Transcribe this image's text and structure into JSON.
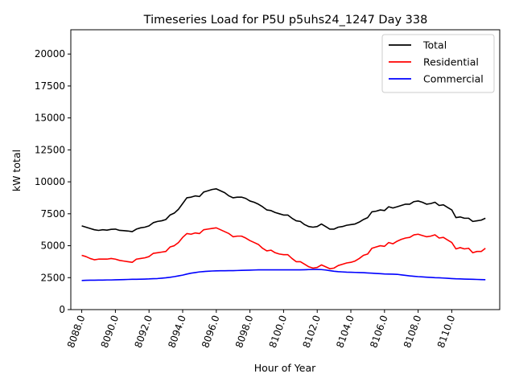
{
  "chart_data": {
    "type": "line",
    "title": "Timeseries Load for P5U p5uhs24_1247  Day 338",
    "xlabel": "Hour of Year",
    "ylabel": "kW total",
    "xlim": [
      8087.35,
      8112.85
    ],
    "ylim": [
      0,
      21900
    ],
    "x_ticks": [
      8088,
      8090,
      8092,
      8094,
      8096,
      8098,
      8100,
      8102,
      8104,
      8106,
      8108,
      8110
    ],
    "x_tick_labels": [
      "8088.0",
      "8090.0",
      "8092.0",
      "8094.0",
      "8096.0",
      "8098.0",
      "8100.0",
      "8102.0",
      "8104.0",
      "8106.0",
      "8108.0",
      "8110.0"
    ],
    "y_ticks": [
      0,
      2500,
      5000,
      7500,
      10000,
      12500,
      15000,
      17500,
      20000
    ],
    "y_tick_labels": [
      "0",
      "2500",
      "5000",
      "7500",
      "10000",
      "12500",
      "15000",
      "17500",
      "20000"
    ],
    "legend_position": "top-right",
    "x_start": 8088,
    "x_step": 0.25,
    "series": [
      {
        "name": "Total",
        "color": "#000000",
        "values": [
          6550,
          6450,
          6350,
          6250,
          6200,
          6250,
          6220,
          6280,
          6300,
          6200,
          6180,
          6150,
          6100,
          6300,
          6400,
          6450,
          6550,
          6800,
          6900,
          6950,
          7050,
          7400,
          7550,
          7850,
          8300,
          8750,
          8800,
          8900,
          8850,
          9200,
          9300,
          9400,
          9450,
          9300,
          9150,
          8900,
          8750,
          8800,
          8800,
          8700,
          8500,
          8400,
          8250,
          8050,
          7800,
          7750,
          7600,
          7500,
          7400,
          7400,
          7150,
          6950,
          6900,
          6650,
          6500,
          6450,
          6500,
          6700,
          6500,
          6300,
          6300,
          6450,
          6500,
          6600,
          6650,
          6700,
          6850,
          7050,
          7200,
          7650,
          7700,
          7800,
          7750,
          8050,
          7950,
          8050,
          8150,
          8250,
          8250,
          8450,
          8500,
          8400,
          8250,
          8300,
          8400,
          8150,
          8200,
          8000,
          7800,
          7200,
          7250,
          7150,
          7150,
          6900,
          6950,
          7000,
          7150
        ]
      },
      {
        "name": "Residential",
        "color": "#ff0000",
        "values": [
          4250,
          4150,
          4000,
          3900,
          3950,
          3950,
          3950,
          4000,
          3950,
          3850,
          3800,
          3750,
          3700,
          3950,
          4000,
          4050,
          4150,
          4400,
          4450,
          4500,
          4550,
          4900,
          5000,
          5250,
          5650,
          5950,
          5900,
          6000,
          5950,
          6250,
          6300,
          6350,
          6400,
          6250,
          6100,
          5950,
          5700,
          5750,
          5750,
          5600,
          5400,
          5250,
          5100,
          4800,
          4600,
          4650,
          4450,
          4350,
          4300,
          4300,
          4000,
          3750,
          3750,
          3550,
          3350,
          3250,
          3300,
          3500,
          3350,
          3200,
          3250,
          3450,
          3550,
          3650,
          3700,
          3800,
          4000,
          4250,
          4350,
          4800,
          4900,
          5000,
          4950,
          5250,
          5150,
          5350,
          5500,
          5600,
          5650,
          5850,
          5900,
          5800,
          5700,
          5750,
          5850,
          5600,
          5650,
          5450,
          5250,
          4750,
          4850,
          4750,
          4800,
          4450,
          4550,
          4550,
          4800
        ]
      },
      {
        "name": "Commercial",
        "color": "#0000ff",
        "values": [
          2280,
          2290,
          2300,
          2300,
          2310,
          2310,
          2320,
          2320,
          2330,
          2340,
          2350,
          2360,
          2370,
          2370,
          2380,
          2390,
          2400,
          2420,
          2430,
          2460,
          2490,
          2530,
          2580,
          2640,
          2700,
          2780,
          2850,
          2900,
          2950,
          2980,
          3000,
          3020,
          3030,
          3040,
          3040,
          3050,
          3050,
          3060,
          3070,
          3080,
          3090,
          3100,
          3110,
          3110,
          3110,
          3110,
          3110,
          3110,
          3110,
          3110,
          3110,
          3110,
          3110,
          3120,
          3130,
          3140,
          3140,
          3130,
          3100,
          3050,
          3000,
          2970,
          2950,
          2930,
          2920,
          2910,
          2900,
          2890,
          2870,
          2850,
          2830,
          2810,
          2790,
          2780,
          2770,
          2760,
          2720,
          2680,
          2640,
          2610,
          2580,
          2560,
          2540,
          2520,
          2500,
          2490,
          2470,
          2450,
          2430,
          2410,
          2400,
          2390,
          2380,
          2370,
          2360,
          2350,
          2340
        ]
      }
    ]
  }
}
